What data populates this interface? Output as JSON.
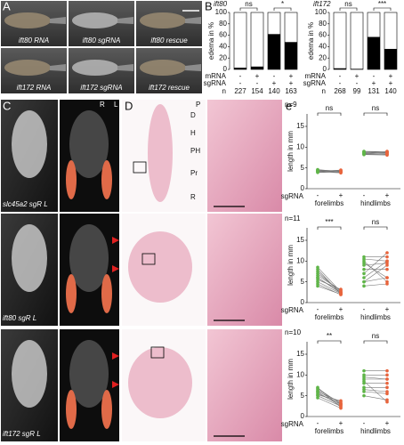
{
  "panel_a": {
    "letter": "A",
    "images": [
      {
        "label": "ift80 RNA"
      },
      {
        "label": "ift80 sgRNA"
      },
      {
        "label": "ift80 rescue"
      },
      {
        "label": "ift172 RNA"
      },
      {
        "label": "ift172 sgRNA"
      },
      {
        "label": "ift172 rescue"
      }
    ]
  },
  "panel_b": {
    "letter": "B",
    "charts": [
      {
        "title": "ift80",
        "y_label": "edema in %",
        "ylim": [
          0,
          100
        ],
        "yticks": [
          0,
          20,
          40,
          60,
          80,
          100
        ],
        "values": [
          3,
          5,
          62,
          48
        ],
        "color": "#000000",
        "significance": [
          "ns",
          "*"
        ],
        "row_labels": [
          "mRNA",
          "sgRNA",
          "n"
        ],
        "mrna": [
          "-",
          "+",
          "-",
          "+"
        ],
        "sgrna": [
          "-",
          "-",
          "+",
          "+"
        ],
        "n": [
          "227",
          "154",
          "140",
          "163"
        ]
      },
      {
        "title": "ift172",
        "y_label": "edema in %",
        "ylim": [
          0,
          100
        ],
        "yticks": [
          0,
          20,
          40,
          60,
          80,
          100
        ],
        "values": [
          2,
          1,
          57,
          36
        ],
        "color": "#000000",
        "significance": [
          "ns",
          "***"
        ],
        "row_labels": [
          "mRNA",
          "sgRNA",
          "n"
        ],
        "mrna": [
          "-",
          "+",
          "-",
          "+"
        ],
        "sgrna": [
          "-",
          "-",
          "+",
          "+"
        ],
        "n": [
          "268",
          "99",
          "131",
          "140"
        ]
      }
    ]
  },
  "panel_c": {
    "letter": "C",
    "orientation": [
      "R",
      "L"
    ],
    "labels": [
      "slc45a2 sgR L",
      "ift80 sgR L",
      "ift172 sgR L"
    ]
  },
  "panel_d": {
    "letter": "D",
    "ends": [
      "P",
      "D"
    ],
    "zones": [
      "H",
      "PH",
      "Pr",
      "R"
    ]
  },
  "panel_e": {
    "letter": "e",
    "colors": {
      "minus": "#5fb548",
      "plus": "#e8643c"
    },
    "charts": [
      {
        "n_label": "n=9",
        "y_label": "length in mm",
        "ylim": [
          0,
          18
        ],
        "yticks": [
          0,
          5,
          10,
          15
        ],
        "sgrna_label": "sgRNA",
        "minus_label": "-",
        "plus_label": "+",
        "groups": [
          {
            "label": "forelimbs",
            "significance": "ns",
            "minus": [
              4.5,
              4.3,
              4.2,
              4.4,
              4.0,
              4.6,
              4.1,
              4.3,
              3.9
            ],
            "plus": [
              4.2,
              4.0,
              4.3,
              3.9,
              4.5,
              4.1,
              3.8,
              4.4,
              4.0
            ]
          },
          {
            "label": "hindlimbs",
            "significance": "ns",
            "minus": [
              8.8,
              8.5,
              8.2,
              9.0,
              8.6,
              8.3,
              8.9,
              8.4,
              8.7
            ],
            "plus": [
              8.6,
              8.8,
              8.1,
              8.9,
              8.3,
              8.5,
              8.7,
              8.2,
              9.0
            ]
          }
        ]
      },
      {
        "n_label": "n=11",
        "y_label": "length in mm",
        "ylim": [
          0,
          18
        ],
        "yticks": [
          0,
          5,
          10,
          15
        ],
        "sgrna_label": "sgRNA",
        "minus_label": "-",
        "plus_label": "+",
        "groups": [
          {
            "label": "forelimbs",
            "significance": "***",
            "minus": [
              4,
              5,
              6,
              6.5,
              7,
              7.5,
              8,
              8.5,
              5.5,
              4.5,
              6
            ],
            "plus": [
              2,
              2.2,
              2.5,
              3,
              2.8,
              2.4,
              2.1,
              2.6,
              3.2,
              1.9,
              2.3
            ]
          },
          {
            "label": "hindlimbs",
            "significance": "ns",
            "minus": [
              4,
              5,
              6,
              8,
              9,
              10,
              11,
              5,
              7,
              9.5,
              10.5
            ],
            "plus": [
              4.5,
              6,
              10,
              8,
              9.5,
              5,
              11,
              9,
              12,
              6,
              10
            ]
          }
        ]
      },
      {
        "n_label": "n=10",
        "y_label": "length in mm",
        "ylim": [
          0,
          18
        ],
        "yticks": [
          0,
          5,
          10,
          15
        ],
        "sgrna_label": "sgRNA",
        "minus_label": "-",
        "plus_label": "+",
        "groups": [
          {
            "label": "forelimbs",
            "significance": "**",
            "minus": [
              4.5,
              5,
              5.5,
              6,
              6.2,
              6.5,
              7,
              5.2,
              5.8,
              6.8
            ],
            "plus": [
              2,
              2.5,
              3,
              3.5,
              2.8,
              3.2,
              2.2,
              3.8,
              2.6,
              3
            ]
          },
          {
            "label": "hindlimbs",
            "significance": "ns",
            "minus": [
              5,
              6,
              7,
              8,
              9,
              10,
              11,
              6.5,
              8.5,
              9.5
            ],
            "plus": [
              4,
              5.5,
              7,
              8,
              9,
              10,
              11,
              6,
              3.5,
              9
            ]
          }
        ]
      }
    ]
  }
}
